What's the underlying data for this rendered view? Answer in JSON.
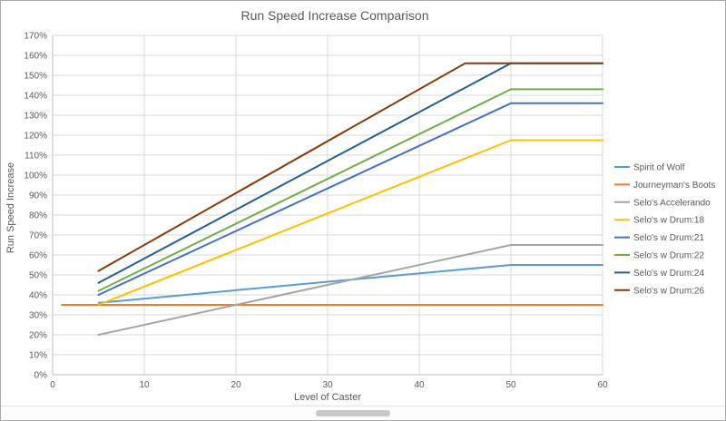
{
  "chart_data": {
    "type": "line",
    "title": "Run Speed Increase Comparison",
    "xlabel": "Level of Caster",
    "ylabel": "Run Speed Increase",
    "xlim": [
      0,
      60
    ],
    "ylim": [
      0,
      170
    ],
    "x_ticks": [
      0,
      10,
      20,
      30,
      40,
      50,
      60
    ],
    "y_ticks": [
      0,
      10,
      20,
      30,
      40,
      50,
      60,
      70,
      80,
      90,
      100,
      110,
      120,
      130,
      140,
      150,
      160,
      170
    ],
    "y_tick_suffix": "%",
    "grid": true,
    "legend_position": "right",
    "colors": {
      "text": "#595959",
      "gridline": "#D9D9D9",
      "axis": "#BFBFBF"
    },
    "series": [
      {
        "name": "Spirit of Wolf",
        "color": "#5B9BD5",
        "points": [
          [
            5,
            36
          ],
          [
            50,
            55
          ],
          [
            60,
            55
          ]
        ]
      },
      {
        "name": "Journeyman's Boots",
        "color": "#ED7D31",
        "points": [
          [
            1,
            35
          ],
          [
            60,
            35
          ]
        ]
      },
      {
        "name": "Selo's Accelerando",
        "color": "#A5A5A5",
        "points": [
          [
            5,
            20
          ],
          [
            50,
            65
          ],
          [
            60,
            65
          ]
        ]
      },
      {
        "name": "Selo's w Drum:18",
        "color": "#FFC000",
        "points": [
          [
            5,
            35
          ],
          [
            50,
            117.5
          ],
          [
            60,
            117.5
          ]
        ]
      },
      {
        "name": "Selo's w Drum:21",
        "color": "#4472C4",
        "points": [
          [
            5,
            40
          ],
          [
            50,
            136
          ],
          [
            60,
            136
          ]
        ]
      },
      {
        "name": "Selo's w Drum:22",
        "color": "#70AD47",
        "points": [
          [
            5,
            42
          ],
          [
            50,
            143
          ],
          [
            60,
            143
          ]
        ]
      },
      {
        "name": "Selo's w Drum:24",
        "color": "#255E91",
        "points": [
          [
            5,
            46
          ],
          [
            50,
            156
          ],
          [
            60,
            156
          ]
        ]
      },
      {
        "name": "Selo's w Drum:26",
        "color": "#843C0C",
        "points": [
          [
            5,
            52
          ],
          [
            45,
            156
          ],
          [
            60,
            156
          ]
        ]
      }
    ]
  },
  "window": {
    "scrollbar": "horizontal-scrollbar"
  }
}
